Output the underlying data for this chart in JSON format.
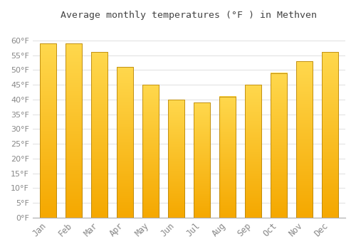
{
  "title": "Average monthly temperatures (°F ) in Methven",
  "months": [
    "Jan",
    "Feb",
    "Mar",
    "Apr",
    "May",
    "Jun",
    "Jul",
    "Aug",
    "Sep",
    "Oct",
    "Nov",
    "Dec"
  ],
  "values": [
    59,
    59,
    56,
    51,
    45,
    40,
    39,
    41,
    45,
    49,
    53,
    56
  ],
  "bar_color_top": "#FFD84D",
  "bar_color_bottom": "#F5A800",
  "bar_edge_color": "#B8860B",
  "background_color": "#FFFFFF",
  "grid_color": "#E0E0E0",
  "tick_label_color": "#888888",
  "title_color": "#444444",
  "ylim": [
    0,
    65
  ],
  "yticks": [
    0,
    5,
    10,
    15,
    20,
    25,
    30,
    35,
    40,
    45,
    50,
    55,
    60
  ],
  "bar_width": 0.65,
  "figsize": [
    5.0,
    3.5
  ],
  "dpi": 100
}
